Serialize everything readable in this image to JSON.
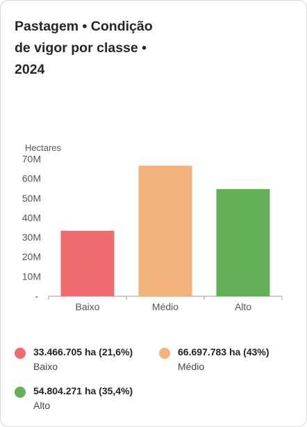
{
  "card": {
    "title_line1": "Pastagem • Condição",
    "title_line2": "de vigor por classe •",
    "title_line3": "2024"
  },
  "chart_data": {
    "type": "bar",
    "ylabel": "Hectares",
    "categories": [
      "Baixo",
      "Médio",
      "Alto"
    ],
    "values": [
      33466705,
      66697783,
      54804271
    ],
    "colors": [
      "#f06b6f",
      "#f2b27a",
      "#63b058"
    ],
    "ylim": [
      0,
      70000000
    ],
    "yticks": [
      0,
      10000000,
      20000000,
      30000000,
      40000000,
      50000000,
      60000000,
      70000000
    ],
    "ytick_labels": [
      "-",
      "10M",
      "20M",
      "30M",
      "40M",
      "50M",
      "60M",
      "70M"
    ],
    "grid": false
  },
  "legend": [
    {
      "value": "33.466.705 ha (21,6%)",
      "label": "Baixo",
      "color": "#f06b6f"
    },
    {
      "value": "66.697.783 ha (43%)",
      "label": "Médio",
      "color": "#f2b27a"
    },
    {
      "value": "54.804.271 ha (35,4%)",
      "label": "Alto",
      "color": "#63b058"
    }
  ]
}
